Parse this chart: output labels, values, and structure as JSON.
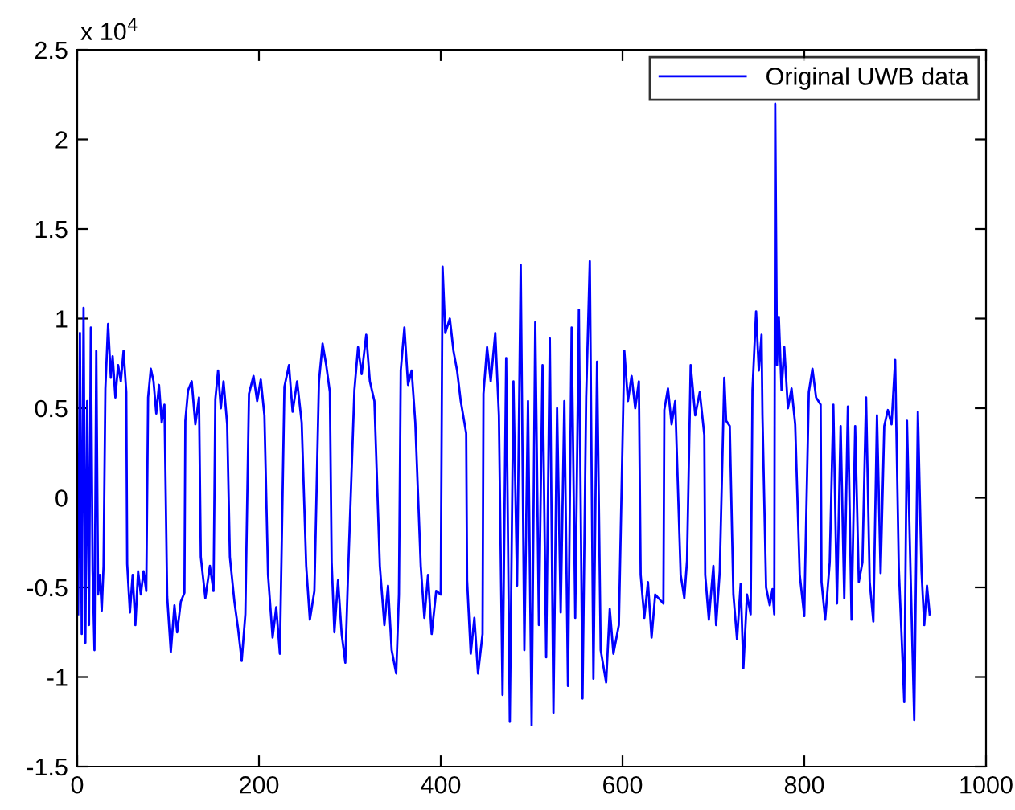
{
  "chart_data": {
    "type": "line",
    "annotations": [
      "x 10$^{4}$"
    ],
    "legend": "top right",
    "grid": false,
    "xlim": [
      0,
      1000
    ],
    "xticks": [
      0,
      200,
      400,
      600,
      800,
      1000
    ],
    "ylim": [
      -1.5,
      2.5
    ],
    "yticks": [
      -1.5,
      -1,
      -0.5,
      0,
      0.5,
      1,
      1.5,
      2,
      2.5
    ],
    "series": [
      {
        "name": "Original UWB data",
        "color": "#0000ff",
        "x": [
          1,
          3,
          5,
          7,
          9,
          11,
          13,
          15,
          17,
          19,
          21,
          23,
          25,
          27,
          29,
          31,
          34,
          37,
          39,
          42,
          45,
          48,
          51,
          54,
          55,
          58,
          61,
          64,
          67,
          70,
          73,
          76,
          78,
          81,
          84,
          87,
          90,
          93,
          96,
          99,
          103,
          107,
          110,
          114,
          118,
          119,
          122,
          126,
          130,
          134,
          136,
          141,
          146,
          150,
          152,
          155,
          158,
          161,
          165,
          168,
          173,
          177,
          181,
          185,
          189,
          194,
          198,
          202,
          206,
          210,
          215,
          219,
          223,
          228,
          233,
          237,
          242,
          247,
          252,
          256,
          261,
          266,
          270,
          274,
          278,
          280,
          283,
          287,
          291,
          295,
          298,
          305,
          309,
          313,
          318,
          322,
          327,
          333,
          338,
          342,
          346,
          351,
          354,
          356,
          360,
          364,
          368,
          372,
          378,
          382,
          386,
          390,
          395,
          400,
          402,
          405,
          410,
          414,
          418,
          422,
          428,
          429,
          433,
          437,
          441,
          446,
          447,
          451,
          455,
          460,
          464,
          468,
          472,
          476,
          480,
          484,
          488,
          492,
          496,
          500,
          504,
          508,
          512,
          516,
          520,
          524,
          528,
          532,
          536,
          540,
          544,
          548,
          552,
          556,
          560,
          564,
          568,
          572,
          576,
          582,
          586,
          590,
          596,
          602,
          606,
          610,
          614,
          618,
          620,
          624,
          628,
          632,
          636,
          645,
          646,
          650,
          654,
          658,
          664,
          668,
          671,
          675,
          680,
          685,
          690,
          691,
          695,
          700,
          703,
          707,
          712,
          714,
          718,
          722,
          726,
          730,
          733,
          737,
          741,
          743,
          747,
          750,
          753,
          754,
          758,
          762,
          765,
          767,
          768,
          770,
          772,
          775,
          778,
          782,
          786,
          790,
          795,
          800,
          801,
          805,
          809,
          813,
          818,
          819,
          823,
          828,
          832,
          836,
          840,
          844,
          848,
          852,
          856,
          860,
          864,
          868,
          872,
          876,
          880,
          884,
          888,
          892,
          896,
          900,
          904,
          910,
          913,
          917,
          921,
          925,
          929,
          932,
          935,
          938
        ],
        "values": [
          -0.65,
          0.92,
          -0.76,
          1.06,
          -0.81,
          0.54,
          -0.71,
          0.95,
          -0.41,
          -0.85,
          0.82,
          -0.54,
          -0.43,
          -0.63,
          -0.38,
          0.61,
          0.97,
          0.67,
          0.79,
          0.56,
          0.74,
          0.65,
          0.82,
          0.59,
          -0.37,
          -0.64,
          -0.43,
          -0.71,
          -0.41,
          -0.54,
          -0.41,
          -0.52,
          0.56,
          0.72,
          0.65,
          0.47,
          0.63,
          0.42,
          0.52,
          -0.55,
          -0.86,
          -0.6,
          -0.75,
          -0.58,
          -0.53,
          0.43,
          0.6,
          0.65,
          0.41,
          0.56,
          -0.33,
          -0.56,
          -0.38,
          -0.52,
          0.55,
          0.71,
          0.5,
          0.65,
          0.41,
          -0.33,
          -0.58,
          -0.73,
          -0.91,
          -0.65,
          0.58,
          0.68,
          0.54,
          0.66,
          0.46,
          -0.43,
          -0.78,
          -0.61,
          -0.87,
          0.62,
          0.74,
          0.48,
          0.65,
          0.42,
          -0.38,
          -0.68,
          -0.52,
          0.65,
          0.86,
          0.74,
          0.59,
          -0.36,
          -0.75,
          -0.46,
          -0.76,
          -0.92,
          -0.43,
          0.6,
          0.84,
          0.69,
          0.91,
          0.65,
          0.54,
          -0.38,
          -0.71,
          -0.49,
          -0.85,
          -0.98,
          -0.54,
          0.71,
          0.95,
          0.63,
          0.71,
          0.42,
          -0.38,
          -0.67,
          -0.43,
          -0.76,
          -0.52,
          -0.54,
          1.29,
          0.92,
          1.0,
          0.82,
          0.71,
          0.54,
          0.36,
          -0.46,
          -0.87,
          -0.67,
          -0.98,
          -0.76,
          0.58,
          0.84,
          0.65,
          0.92,
          0.46,
          -1.1,
          0.78,
          -1.25,
          0.65,
          -0.49,
          1.3,
          -0.85,
          0.54,
          -1.27,
          0.98,
          -0.71,
          0.74,
          -0.89,
          0.89,
          -1.2,
          0.5,
          -0.64,
          0.54,
          -1.05,
          0.95,
          -0.67,
          1.05,
          -1.12,
          0.56,
          1.32,
          -1.01,
          0.76,
          -0.85,
          -1.03,
          -0.62,
          -0.87,
          -0.71,
          0.82,
          0.54,
          0.68,
          0.5,
          0.65,
          -0.43,
          -0.67,
          -0.47,
          -0.78,
          -0.54,
          -0.59,
          0.49,
          0.61,
          0.41,
          0.54,
          -0.43,
          -0.56,
          -0.35,
          0.74,
          0.46,
          0.59,
          0.35,
          -0.43,
          -0.68,
          -0.38,
          -0.71,
          -0.41,
          0.67,
          0.43,
          0.4,
          -0.54,
          -0.79,
          -0.48,
          -0.95,
          -0.54,
          -0.65,
          0.6,
          1.04,
          0.71,
          0.91,
          0.46,
          -0.5,
          -0.6,
          -0.51,
          -0.65,
          2.2,
          0.74,
          1.01,
          0.6,
          0.84,
          0.5,
          0.61,
          0.41,
          -0.43,
          -0.66,
          -0.39,
          0.59,
          0.72,
          0.56,
          0.52,
          -0.47,
          -0.68,
          -0.36,
          0.52,
          -0.59,
          0.4,
          -0.56,
          0.51,
          -0.68,
          0.4,
          -0.47,
          -0.36,
          0.56,
          -0.47,
          -0.69,
          0.46,
          -0.42,
          0.4,
          0.49,
          0.41,
          0.77,
          -0.39,
          -1.14,
          0.43,
          -0.43,
          -1.24,
          0.48,
          -0.41,
          -0.71,
          -0.49,
          -0.65
        ]
      }
    ]
  }
}
